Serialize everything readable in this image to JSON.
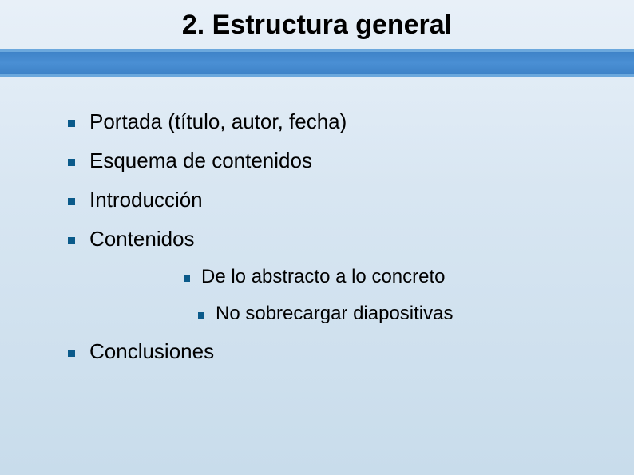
{
  "slide": {
    "title": "2. Estructura general",
    "bullets": [
      {
        "text": "Portada (título, autor, fecha)"
      },
      {
        "text": "Esquema de contenidos"
      },
      {
        "text": "Introducción"
      },
      {
        "text": "Contenidos"
      }
    ],
    "subBullets": [
      {
        "text": "De lo abstracto a lo concreto"
      },
      {
        "text": "No sobrecargar diapositivas"
      }
    ],
    "lastBullet": {
      "text": "Conclusiones"
    }
  },
  "style": {
    "background_gradient": [
      "#e8f0f8",
      "#d8e6f2",
      "#c8dceb"
    ],
    "title_bar_color": "#3b7fc4",
    "title_bar_highlight": "#6ba8dd",
    "bullet_color": "#0a5a8a",
    "title_fontsize": 34,
    "bullet_fontsize": 26,
    "sub_bullet_fontsize": 24,
    "text_color": "#000000"
  }
}
